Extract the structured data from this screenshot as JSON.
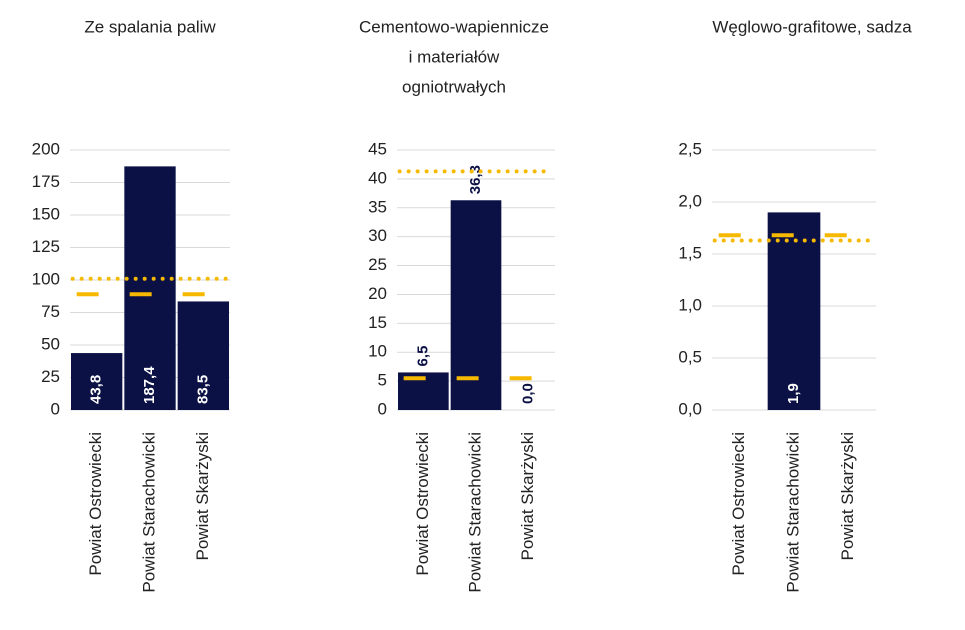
{
  "chart_data": [
    {
      "type": "bar",
      "title": [
        "Ze spalania paliw"
      ],
      "categories": [
        "Powiat Ostrowiecki",
        "Powiat Starachowicki",
        "Powiat Skarżyski"
      ],
      "values": [
        43.8,
        187.4,
        83.5
      ],
      "value_labels": [
        "43,8",
        "187,4",
        "83,5"
      ],
      "label_position": "inside_base",
      "color": "#0b1145",
      "dashed_line": 89,
      "dotted_line": 101,
      "line_color": "#f7b900",
      "ylim": [
        0,
        200
      ],
      "yticks": [
        0,
        25,
        50,
        75,
        100,
        125,
        150,
        175,
        200
      ],
      "grid": true
    },
    {
      "type": "bar",
      "title": [
        "Cementowo-wapiennicze",
        "i materiałów",
        "ogniotrwałych"
      ],
      "categories": [
        "Powiat Ostrowiecki",
        "Powiat Starachowicki",
        "Powiat Skarżyski"
      ],
      "values": [
        6.5,
        36.3,
        0.0
      ],
      "value_labels": [
        "6,5",
        "36,3",
        "0,0"
      ],
      "label_position": "outside_end",
      "color": "#0b1145",
      "dashed_line": 5.5,
      "dotted_line": 41.3,
      "line_color": "#f7b900",
      "ylim": [
        0,
        45
      ],
      "yticks": [
        0,
        5,
        10,
        15,
        20,
        25,
        30,
        35,
        40,
        45
      ],
      "grid": true
    },
    {
      "type": "bar",
      "title": [
        "Węglowo-grafitowe, sadza"
      ],
      "categories": [
        "Powiat Ostrowiecki",
        "Powiat Starachowicki",
        "Powiat Skarżyski"
      ],
      "values": [
        null,
        1.9,
        null
      ],
      "value_labels": [
        null,
        "1,9",
        null
      ],
      "label_position": "inside_base",
      "color": "#0b1145",
      "dashed_line": 1.68,
      "dotted_line": 1.63,
      "line_color": "#f7b900",
      "ylim": [
        0,
        2.5
      ],
      "yticks": [
        {
          "value": 0,
          "label": "0,0"
        },
        {
          "value": 0.5,
          "label": "0,5"
        },
        {
          "value": 1,
          "label": "1,0"
        },
        {
          "value": 1.5,
          "label": "1,5"
        },
        {
          "value": 2,
          "label": "2,0"
        },
        {
          "value": 2.5,
          "label": "2,5"
        }
      ],
      "grid": true
    }
  ]
}
